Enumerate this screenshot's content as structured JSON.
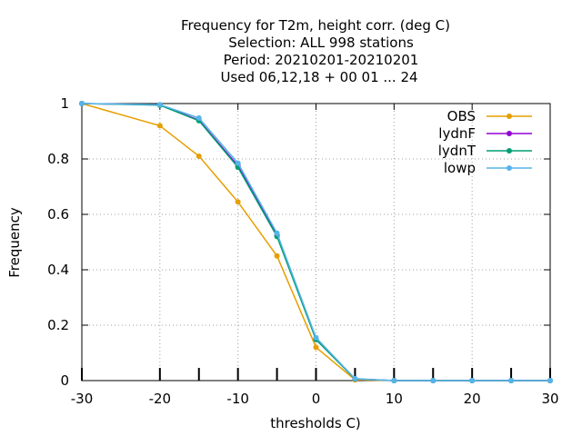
{
  "chart_data": {
    "type": "line",
    "title_lines": [
      "Frequency  for T2m, height corr. (deg C)",
      "Selection: ALL    998 stations",
      "Period: 20210201-20210201",
      "Used  06,12,18 + 00 01 ... 24"
    ],
    "xlabel": "thresholds C)",
    "ylabel": "Frequency",
    "xlim": [
      -30,
      30
    ],
    "ylim": [
      0,
      1
    ],
    "xticks": [
      -30,
      -20,
      -10,
      0,
      10,
      20,
      30
    ],
    "yticks": [
      0,
      0.2,
      0.4,
      0.6,
      0.8,
      1
    ],
    "ytick_labels": [
      "0",
      "0.2",
      "0.4",
      "0.6",
      "0.8",
      "1"
    ],
    "grid": true,
    "legend_position": "top-right",
    "x": [
      -30,
      -20,
      -15,
      -10,
      -5,
      0,
      5,
      10,
      15,
      20,
      25,
      30
    ],
    "series": [
      {
        "name": "OBS",
        "color": "#e69f00",
        "values": [
          1.0,
          0.92,
          0.81,
          0.645,
          0.45,
          0.12,
          0.003,
          0.0,
          0.0,
          0.0,
          0.0,
          0.0
        ]
      },
      {
        "name": "lydnF",
        "color": "#9400d3",
        "values": [
          1.0,
          0.995,
          0.94,
          0.775,
          0.525,
          0.15,
          0.006,
          0.0,
          0.0,
          0.0,
          0.0,
          0.0
        ]
      },
      {
        "name": "lydnT",
        "color": "#009e73",
        "values": [
          1.0,
          0.994,
          0.938,
          0.77,
          0.52,
          0.148,
          0.006,
          0.0,
          0.0,
          0.0,
          0.0,
          0.0
        ]
      },
      {
        "name": "lowp",
        "color": "#56b4e9",
        "values": [
          1.0,
          0.996,
          0.948,
          0.785,
          0.532,
          0.155,
          0.007,
          0.0,
          0.0,
          0.0,
          0.0,
          0.0
        ]
      }
    ]
  }
}
